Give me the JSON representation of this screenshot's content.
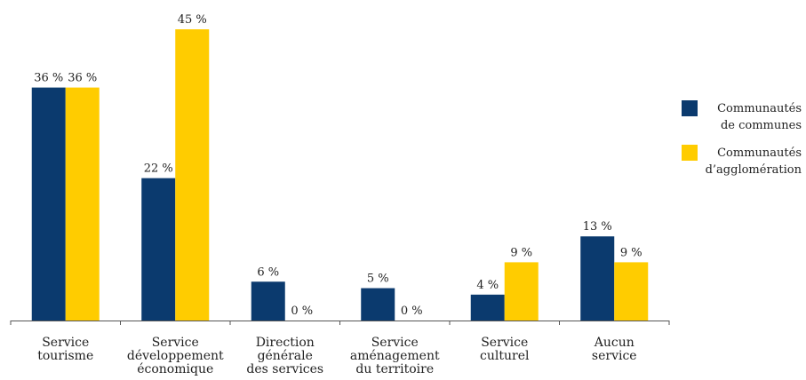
{
  "chart_data": {
    "type": "bar",
    "categories": [
      "Service\ntourisme",
      "Service\ndéveloppement\néconomique",
      "Direction\ngénérale\ndes services",
      "Service\naménagement\ndu territoire",
      "Service\nculturel",
      "Aucun\nservice"
    ],
    "series": [
      {
        "name": "Communautés\nde communes",
        "values": [
          36,
          22,
          6,
          5,
          4,
          13
        ],
        "labels": [
          "36 %",
          "22 %",
          "6 %",
          "5 %",
          "4 %",
          "13 %"
        ],
        "color": "#0b3a6e"
      },
      {
        "name": "Communautés\nd’agglomération",
        "values": [
          36,
          45,
          0,
          0,
          9,
          9
        ],
        "labels": [
          "36 %",
          "45 %",
          "0 %",
          "0 %",
          "9 %",
          "9 %"
        ],
        "color": "#ffcc00"
      }
    ],
    "ylim": [
      0,
      45
    ],
    "unit": "%",
    "grid": false,
    "legend_position": "right"
  }
}
